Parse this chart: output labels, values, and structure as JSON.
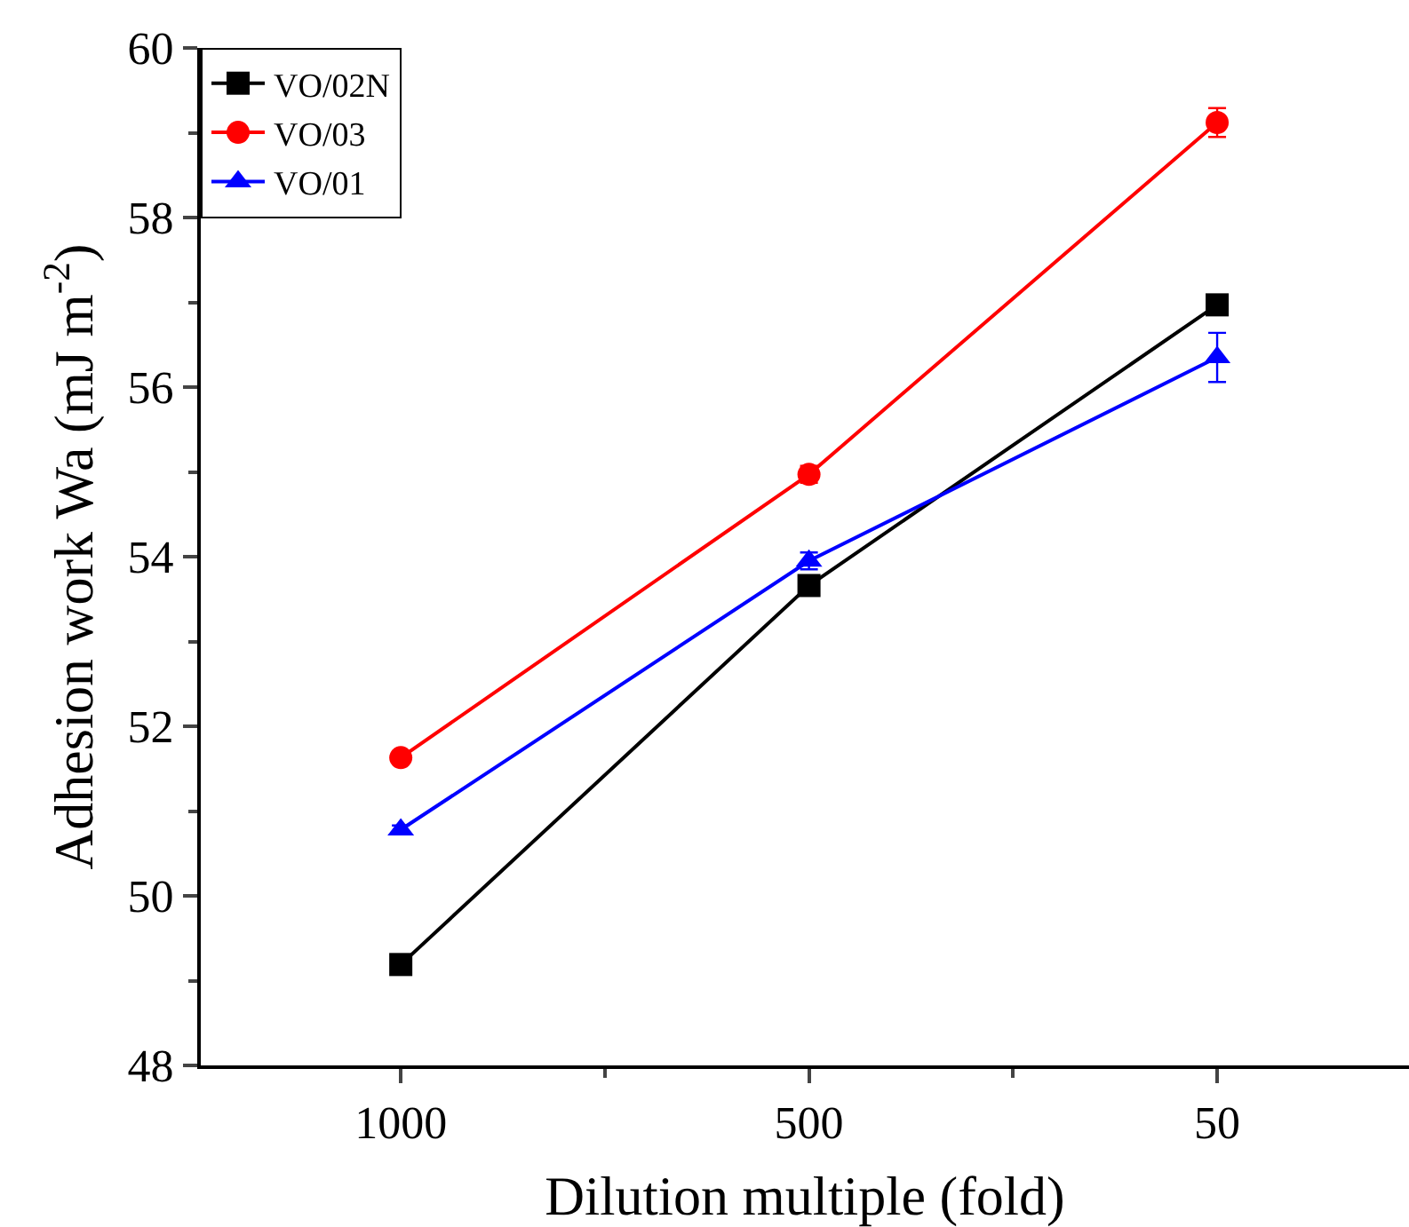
{
  "chart_data": {
    "type": "line",
    "xlabel": "Dilution multiple (fold)",
    "ylabel": "Adhesion work Wa (mJ m$^{-2}$)",
    "categories": [
      "1000",
      "500",
      "50"
    ],
    "series": [
      {
        "name": "VO/02N",
        "color": "#000000",
        "marker": "square",
        "values": [
          49.19,
          53.66,
          56.97
        ]
      },
      {
        "name": "VO/03",
        "color": "#ff0000",
        "marker": "circle",
        "values": [
          51.63,
          54.97,
          59.12
        ],
        "errors": [
          0.05,
          0.1,
          0.17
        ]
      },
      {
        "name": "VO/01",
        "color": "#0000ff",
        "marker": "triangle",
        "values": [
          50.78,
          53.95,
          56.35
        ],
        "errors": [
          0.05,
          0.1,
          0.29
        ]
      }
    ],
    "ylim": [
      48,
      60
    ],
    "yticks": [
      48,
      50,
      52,
      54,
      56,
      58,
      60
    ],
    "legend": "top left",
    "line_style": "solid"
  }
}
